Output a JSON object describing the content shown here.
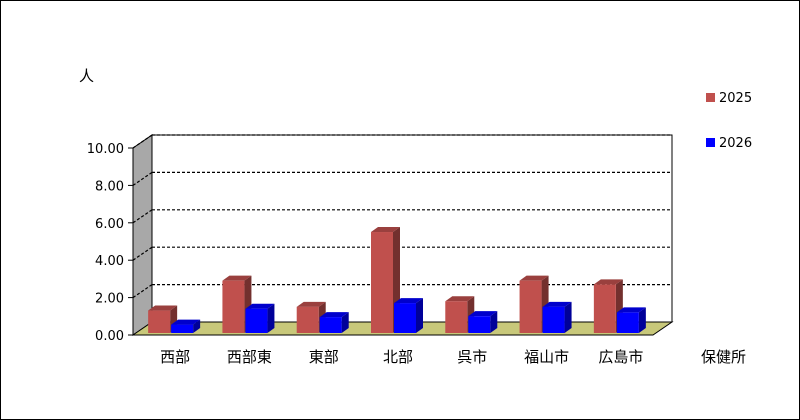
{
  "chart_data": {
    "type": "bar",
    "title": "",
    "ylabel": "人",
    "xlabel": "保健所",
    "categories": [
      "西部",
      "西部東",
      "東部",
      "北部",
      "呉市",
      "福山市",
      "広島市"
    ],
    "series": [
      {
        "name": "2025",
        "values": [
          1.2,
          2.8,
          1.4,
          5.4,
          1.7,
          2.8,
          2.6
        ],
        "color": "#C0504D"
      },
      {
        "name": "2026",
        "values": [
          0.45,
          1.3,
          0.85,
          1.6,
          0.9,
          1.4,
          1.1
        ],
        "color": "#0000FF"
      }
    ],
    "yticks": [
      "0.00",
      "2.00",
      "4.00",
      "6.00",
      "8.00",
      "10.00"
    ],
    "ylim": [
      0,
      10
    ],
    "grid": true,
    "legend": "right",
    "style": "3d",
    "colors": {
      "wall": "#A8A8A8",
      "floor": "#C8C87A"
    }
  }
}
